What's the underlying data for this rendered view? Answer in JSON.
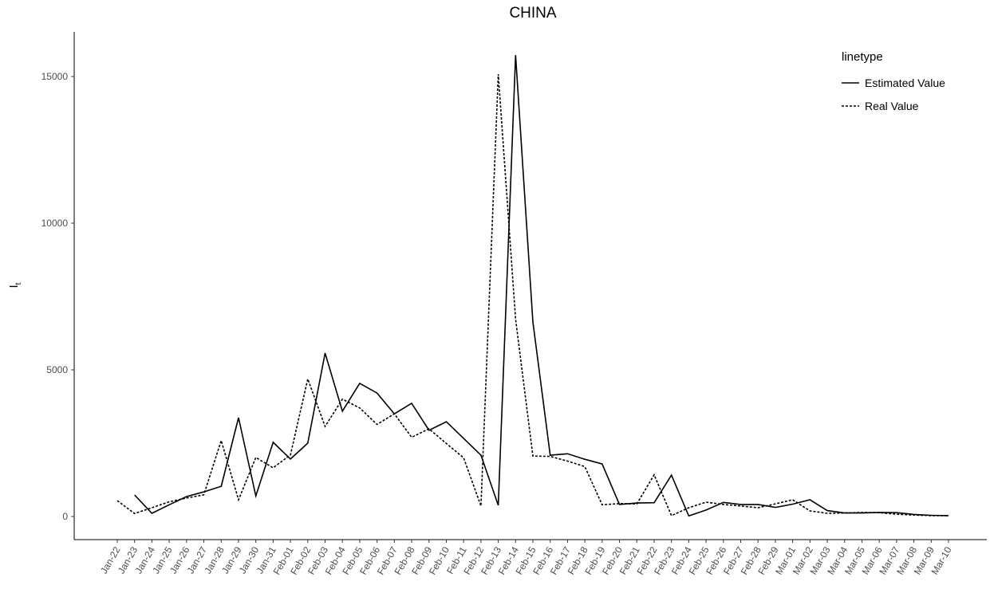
{
  "chart_data": {
    "type": "line",
    "title": "CHINA",
    "ylabel": {
      "text": "I",
      "subscript": "t"
    },
    "categories": [
      "Jan-22",
      "Jan-23",
      "Jan-24",
      "Jan-25",
      "Jan-26",
      "Jan-27",
      "Jan-28",
      "Jan-29",
      "Jan-30",
      "Jan-31",
      "Feb-01",
      "Feb-02",
      "Feb-03",
      "Feb-04",
      "Feb-05",
      "Feb-06",
      "Feb-07",
      "Feb-08",
      "Feb-09",
      "Feb-10",
      "Feb-11",
      "Feb-12",
      "Feb-13",
      "Feb-14",
      "Feb-15",
      "Feb-16",
      "Feb-17",
      "Feb-18",
      "Feb-19",
      "Feb-20",
      "Feb-21",
      "Feb-22",
      "Feb-23",
      "Feb-24",
      "Feb-25",
      "Feb-26",
      "Feb-27",
      "Feb-28",
      "Feb-29",
      "Mar-01",
      "Mar-02",
      "Mar-03",
      "Mar-04",
      "Mar-05",
      "Mar-06",
      "Mar-07",
      "Mar-08",
      "Mar-09",
      "Mar-10"
    ],
    "series": [
      {
        "name": "Estimated Value",
        "color": "#000000",
        "dash": "solid",
        "values": [
          null,
          734,
          110,
          400,
          680,
          840,
          1030,
          3370,
          700,
          2530,
          1960,
          2500,
          5570,
          3590,
          4540,
          4210,
          3500,
          3860,
          2940,
          3230,
          2660,
          2090,
          380,
          15730,
          6630,
          2090,
          2140,
          1950,
          1790,
          410,
          460,
          470,
          1410,
          20,
          220,
          480,
          410,
          410,
          310,
          420,
          570,
          200,
          120,
          120,
          140,
          130,
          70,
          40,
          30
        ]
      },
      {
        "name": "Real Value",
        "color": "#000000",
        "dash": "dotted",
        "values": [
          540,
          100,
          300,
          500,
          630,
          740,
          2590,
          570,
          2010,
          1660,
          2100,
          4690,
          3070,
          4000,
          3700,
          3140,
          3500,
          2700,
          2990,
          2490,
          2000,
          360,
          15080,
          6730,
          2060,
          2050,
          1890,
          1700,
          400,
          440,
          430,
          1420,
          30,
          300,
          490,
          410,
          360,
          300,
          430,
          570,
          190,
          110,
          120,
          140,
          130,
          80,
          50,
          30,
          30
        ]
      }
    ],
    "ylim": [
      -788,
      16522
    ],
    "yticks": [
      0,
      5000,
      10000,
      15000
    ],
    "grid": false,
    "legend": {
      "title": "linetype",
      "position": "top-right"
    }
  }
}
